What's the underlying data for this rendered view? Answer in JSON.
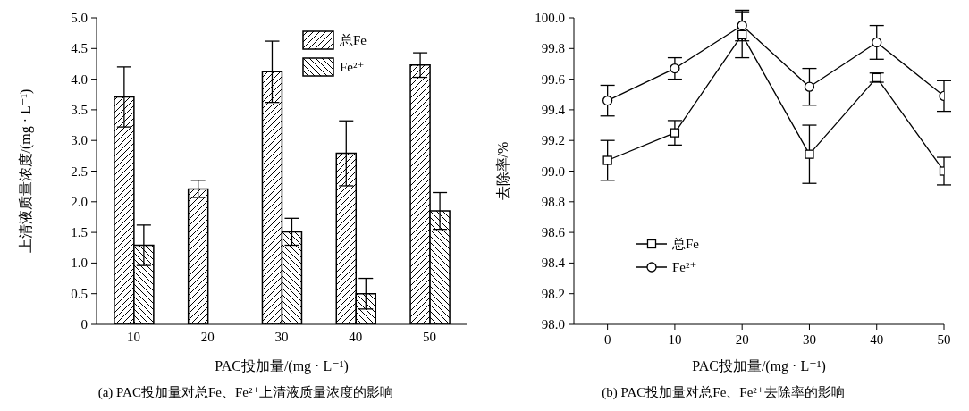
{
  "chart_data": [
    {
      "type": "bar",
      "xlabel": "PAC投加量/(mg · L⁻¹)",
      "ylabel": "上清液质量浓度/(mg · L⁻¹)",
      "categories": [
        "10",
        "20",
        "30",
        "40",
        "50"
      ],
      "series": [
        {
          "name": "总Fe",
          "color": "#000000",
          "values": [
            3.71,
            2.21,
            4.12,
            2.79,
            4.23
          ],
          "errors": [
            0.49,
            0.14,
            0.5,
            0.53,
            0.2
          ]
        },
        {
          "name": "Fe²⁺",
          "color": "#000000",
          "values": [
            1.29,
            null,
            1.51,
            0.5,
            1.85
          ],
          "errors": [
            0.33,
            null,
            0.22,
            0.25,
            0.3
          ]
        }
      ],
      "ylim": [
        0,
        5
      ],
      "yticks": [
        0,
        {
          "value": 0.5,
          "label": "0.5"
        },
        {
          "value": 1,
          "label": "1.0"
        },
        {
          "value": 1.5,
          "label": "1.5"
        },
        {
          "value": 2,
          "label": "2.0"
        },
        {
          "value": 2.5,
          "label": "2.5"
        },
        {
          "value": 3,
          "label": "3.0"
        },
        {
          "value": 3.5,
          "label": "3.5"
        },
        {
          "value": 4,
          "label": "4.0"
        },
        {
          "value": 4.5,
          "label": "4.5"
        },
        {
          "value": 5,
          "label": "5.0"
        }
      ],
      "legend": "top right",
      "grid": false,
      "annotations": [
        "(a) PAC投加量对总Fe、Fe²⁺上清液质量浓度的影响"
      ]
    },
    {
      "type": "line",
      "xlabel": "PAC投加量/(mg · L⁻¹)",
      "ylabel": "去除率/%",
      "x": [
        0,
        10,
        20,
        30,
        40,
        50
      ],
      "series": [
        {
          "name": "总Fe",
          "color": "#000000",
          "marker": "square",
          "values": [
            99.07,
            99.25,
            99.89,
            99.11,
            99.61,
            99.0
          ],
          "errors": [
            0.13,
            0.08,
            0.15,
            0.19,
            0.03,
            0.09
          ]
        },
        {
          "name": "Fe²⁺",
          "color": "#000000",
          "marker": "circle",
          "values": [
            99.46,
            99.67,
            99.95,
            99.55,
            99.84,
            99.49
          ],
          "errors": [
            0.1,
            0.07,
            0.1,
            0.12,
            0.11,
            0.1
          ]
        }
      ],
      "xlim": [
        -5,
        50
      ],
      "xticks": [
        0,
        10,
        20,
        30,
        40,
        50
      ],
      "ylim": [
        98,
        100
      ],
      "yticks": [
        {
          "value": 98,
          "label": "98.0"
        },
        {
          "value": 98.2,
          "label": "98.2"
        },
        {
          "value": 98.4,
          "label": "98.4"
        },
        {
          "value": 98.6,
          "label": "98.6"
        },
        {
          "value": 98.8,
          "label": "98.8"
        },
        {
          "value": 99,
          "label": "99.0"
        },
        {
          "value": 99.2,
          "label": "99.2"
        },
        {
          "value": 99.4,
          "label": "99.4"
        },
        {
          "value": 99.6,
          "label": "99.6"
        },
        {
          "value": 99.8,
          "label": "99.8"
        },
        {
          "value": 100,
          "label": "100.0"
        }
      ],
      "legend": "bottom left",
      "grid": false,
      "annotations": [
        "(b) PAC投加量对总Fe、Fe²⁺去除率的影响"
      ]
    }
  ]
}
